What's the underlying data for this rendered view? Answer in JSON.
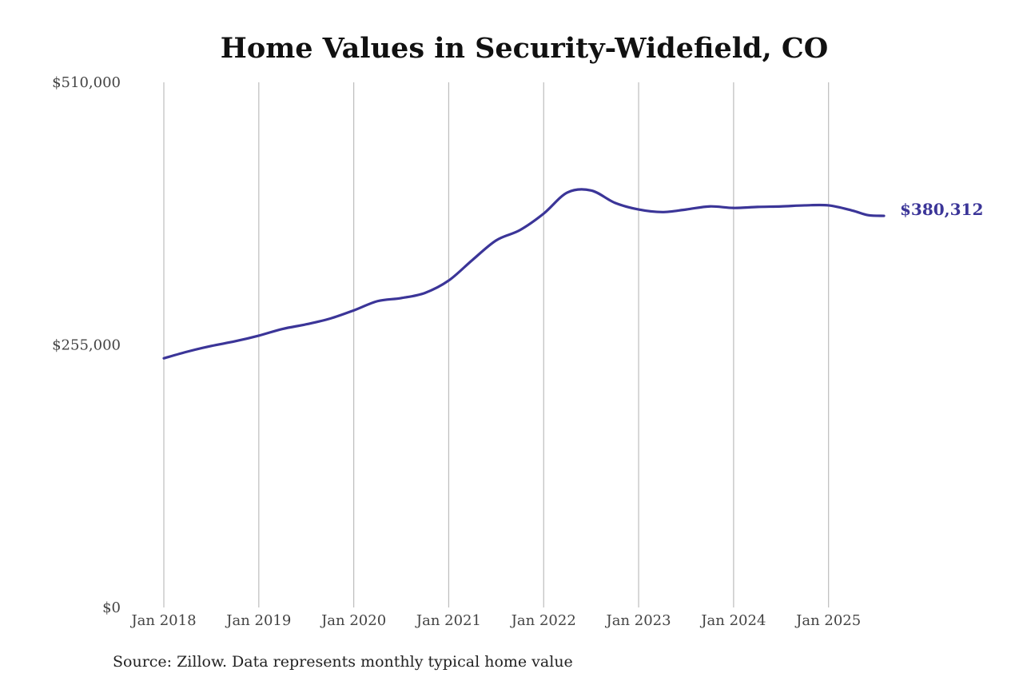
{
  "chart_data": {
    "type": "line",
    "title": "Home Values in Security-Widefield, CO",
    "source": "Source: Zillow. Data represents monthly typical home value",
    "ylim": [
      0,
      510000
    ],
    "yticks": [
      {
        "value": 0,
        "label": "$0"
      },
      {
        "value": 255000,
        "label": "$255,000"
      },
      {
        "value": 510000,
        "label": "$510,000"
      }
    ],
    "xlim": [
      "2018-01",
      "2025-08"
    ],
    "xticks": [
      {
        "date": "2018-01",
        "label": "Jan 2018"
      },
      {
        "date": "2019-01",
        "label": "Jan 2019"
      },
      {
        "date": "2020-01",
        "label": "Jan 2020"
      },
      {
        "date": "2021-01",
        "label": "Jan 2021"
      },
      {
        "date": "2022-01",
        "label": "Jan 2022"
      },
      {
        "date": "2023-01",
        "label": "Jan 2023"
      },
      {
        "date": "2024-01",
        "label": "Jan 2024"
      },
      {
        "date": "2025-01",
        "label": "Jan 2025"
      }
    ],
    "grid": "vertical",
    "series_color": "#3b3598",
    "end_label": "$380,312",
    "series": [
      {
        "points": [
          [
            "2018-01",
            242000
          ],
          [
            "2018-04",
            248500
          ],
          [
            "2018-07",
            254000
          ],
          [
            "2018-10",
            258500
          ],
          [
            "2019-01",
            264000
          ],
          [
            "2019-04",
            270500
          ],
          [
            "2019-07",
            275000
          ],
          [
            "2019-10",
            280500
          ],
          [
            "2020-01",
            288500
          ],
          [
            "2020-04",
            297500
          ],
          [
            "2020-07",
            300500
          ],
          [
            "2020-10",
            305500
          ],
          [
            "2021-01",
            317500
          ],
          [
            "2021-04",
            337500
          ],
          [
            "2021-07",
            356500
          ],
          [
            "2021-10",
            366500
          ],
          [
            "2022-01",
            382500
          ],
          [
            "2022-04",
            403000
          ],
          [
            "2022-07",
            405000
          ],
          [
            "2022-10",
            393000
          ],
          [
            "2023-01",
            386500
          ],
          [
            "2023-04",
            384000
          ],
          [
            "2023-07",
            386500
          ],
          [
            "2023-10",
            389500
          ],
          [
            "2024-01",
            388000
          ],
          [
            "2024-04",
            389000
          ],
          [
            "2024-07",
            389500
          ],
          [
            "2024-10",
            390500
          ],
          [
            "2025-01",
            390500
          ],
          [
            "2025-04",
            385500
          ],
          [
            "2025-06",
            381000
          ],
          [
            "2025-08",
            380312
          ]
        ]
      }
    ]
  }
}
